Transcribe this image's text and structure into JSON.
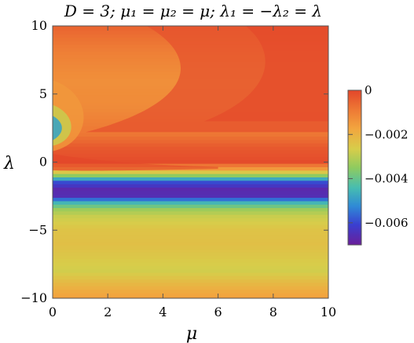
{
  "chart_data": {
    "type": "heatmap",
    "title": "D = 3;  μ₁ = μ₂ = μ;   λ₁ = −λ₂ = λ",
    "xlabel": "μ",
    "ylabel": "λ",
    "xlim": [
      0,
      10
    ],
    "ylim": [
      -10,
      10
    ],
    "x_ticks": [
      0,
      2,
      4,
      6,
      8,
      10
    ],
    "y_ticks": [
      -10,
      -5,
      0,
      5,
      10
    ],
    "x_tick_labels": [
      "0",
      "2",
      "4",
      "6",
      "8",
      "10"
    ],
    "y_tick_labels": [
      "−10",
      "−5",
      "0",
      "5",
      "10"
    ],
    "colorbar": {
      "range": [
        -0.007,
        0
      ],
      "ticks": [
        0,
        -0.002,
        -0.004,
        -0.006
      ],
      "tick_labels": [
        "0",
        "−0.002",
        "−0.004",
        "−0.006"
      ],
      "colors": [
        "#6a1f9a",
        "#3a3fd0",
        "#2f8ad6",
        "#47bdb0",
        "#8fcb5f",
        "#d7cd4a",
        "#f2a63f",
        "#ee7a35",
        "#e3462a"
      ]
    },
    "value_samples": [
      {
        "mu": 10,
        "lambda": 10,
        "value": 0
      },
      {
        "mu": 0.2,
        "lambda": -0.5,
        "value": 0
      },
      {
        "mu": 5,
        "lambda": -2,
        "value": -0.0066
      },
      {
        "mu": 0,
        "lambda": 2.5,
        "value": -0.0045
      },
      {
        "mu": 5,
        "lambda": -8,
        "value": -0.0026
      }
    ],
    "grid": false
  }
}
